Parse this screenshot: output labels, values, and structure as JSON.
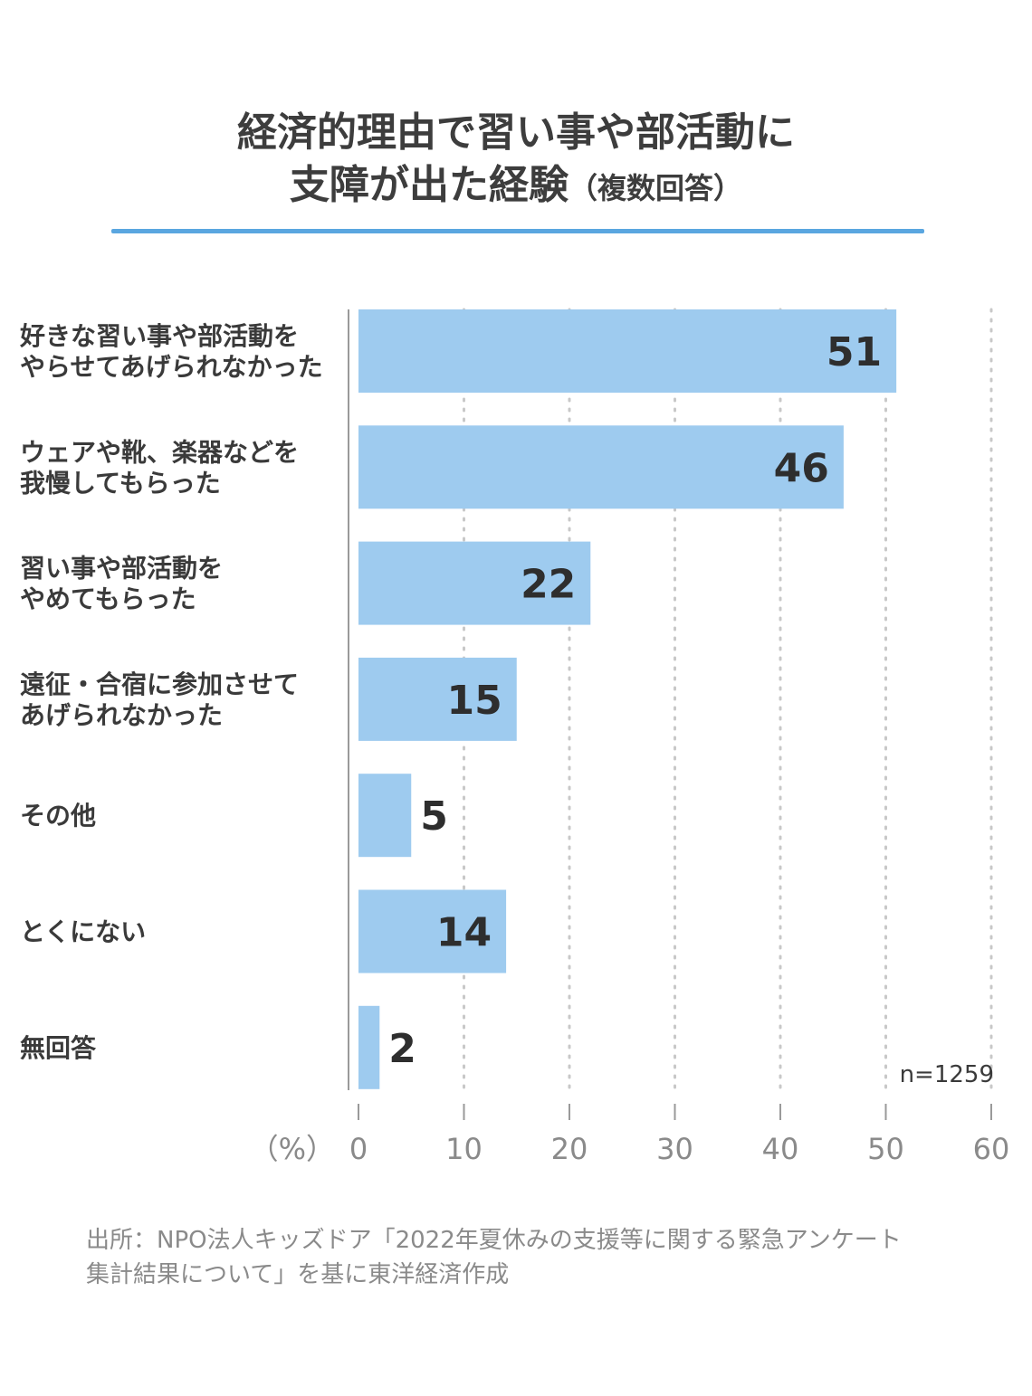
{
  "title": {
    "line1": "経済的理由で習い事や部活動に",
    "line2": "支障が出た経験",
    "line2_suffix": "（複数回答）"
  },
  "chart_data": {
    "type": "bar",
    "orientation": "horizontal",
    "categories": [
      "好きな習い事や部活動を\nやらせてあげられなかった",
      "ウェアや靴、楽器などを\n我慢してもらった",
      "習い事や部活動を\nやめてもらった",
      "遠征・合宿に参加させて\nあげられなかった",
      "その他",
      "とくにない",
      "無回答"
    ],
    "values": [
      51,
      46,
      22,
      15,
      5,
      14,
      2
    ],
    "xlim": [
      0,
      60
    ],
    "ticks": [
      0,
      10,
      20,
      30,
      40,
      50,
      60
    ],
    "unit_label": "（%）",
    "sample_note": "n=1259",
    "grid": "dotted vertical",
    "colors": {
      "bar": "#9ecbef",
      "grid": "#c8c8c8",
      "axis": "#9a9a9a",
      "title_rule": "#5aa6e0"
    }
  },
  "source": {
    "line1": "出所：NPO法人キッズドア「2022年夏休みの支援等に関する緊急アンケート",
    "line2": "集計結果について」を基に東洋経済作成"
  }
}
